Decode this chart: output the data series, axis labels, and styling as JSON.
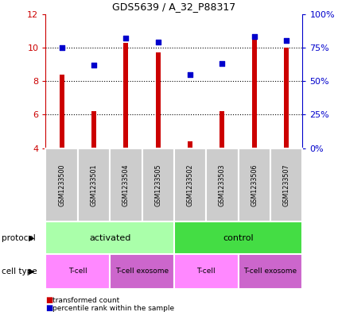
{
  "title": "GDS5639 / A_32_P88317",
  "samples": [
    "GSM1233500",
    "GSM1233501",
    "GSM1233504",
    "GSM1233505",
    "GSM1233502",
    "GSM1233503",
    "GSM1233506",
    "GSM1233507"
  ],
  "transformed_count": [
    8.4,
    6.2,
    10.3,
    9.7,
    4.4,
    6.2,
    10.6,
    10.0
  ],
  "percentile_rank": [
    75,
    62,
    82,
    79,
    55,
    63,
    83,
    80
  ],
  "ylim_left": [
    4,
    12
  ],
  "ylim_right": [
    0,
    100
  ],
  "yticks_left": [
    4,
    6,
    8,
    10,
    12
  ],
  "yticks_right": [
    0,
    25,
    50,
    75,
    100
  ],
  "ytick_labels_right": [
    "0%",
    "25%",
    "50%",
    "75%",
    "100%"
  ],
  "bar_color": "#cc0000",
  "dot_color": "#0000cc",
  "bar_bottom": 4,
  "protocol_groups": [
    {
      "label": "activated",
      "start": 0,
      "end": 4,
      "color": "#aaffaa"
    },
    {
      "label": "control",
      "start": 4,
      "end": 8,
      "color": "#44dd44"
    }
  ],
  "cell_type_groups": [
    {
      "label": "T-cell",
      "start": 0,
      "end": 2,
      "color": "#ff88ff"
    },
    {
      "label": "T-cell exosome",
      "start": 2,
      "end": 4,
      "color": "#cc66cc"
    },
    {
      "label": "T-cell",
      "start": 4,
      "end": 6,
      "color": "#ff88ff"
    },
    {
      "label": "T-cell exosome",
      "start": 6,
      "end": 8,
      "color": "#cc66cc"
    }
  ],
  "left_axis_color": "#cc0000",
  "right_axis_color": "#0000cc",
  "background_color": "#ffffff",
  "sample_label_bg": "#cccccc"
}
